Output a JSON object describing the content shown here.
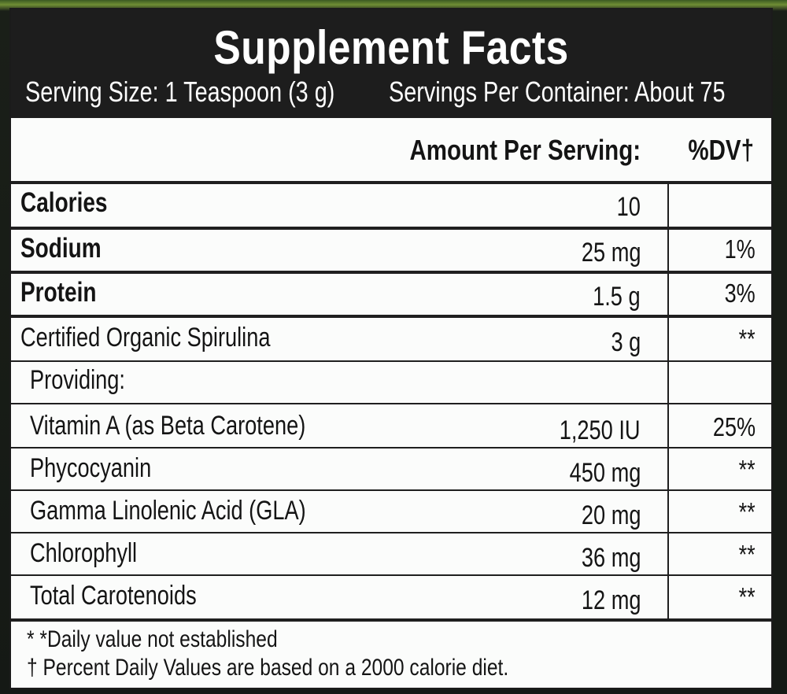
{
  "title": "Supplement Facts",
  "serving_size": "Serving Size: 1 Teaspoon (3 g)",
  "servings_per_container": "Servings Per Container: About 75",
  "columns": {
    "amount": "Amount Per Serving:",
    "dv": "%DV†"
  },
  "rows": [
    {
      "name": "Calories",
      "amount": "10",
      "dv": ""
    },
    {
      "name": "Sodium",
      "amount": "25 mg",
      "dv": "1%"
    },
    {
      "name": "Protein",
      "amount": "1.5 g",
      "dv": "3%"
    },
    {
      "name": "Certified Organic Spirulina",
      "amount": "3 g",
      "dv": "**"
    },
    {
      "name": "Providing:",
      "amount": "",
      "dv": ""
    },
    {
      "name": "Vitamin A (as Beta Carotene)",
      "amount": "1,250 IU",
      "dv": "25%"
    },
    {
      "name": "Phycocyanin",
      "amount": "450 mg",
      "dv": "**"
    },
    {
      "name": "Gamma Linolenic Acid (GLA)",
      "amount": "20 mg",
      "dv": "**"
    },
    {
      "name": "Chlorophyll",
      "amount": "36 mg",
      "dv": "**"
    },
    {
      "name": "Total Carotenoids",
      "amount": "12 mg",
      "dv": "**"
    }
  ],
  "footnotes": [
    "* *Daily value not established",
    "† Percent Daily Values are based on a 2000 calorie diet."
  ]
}
